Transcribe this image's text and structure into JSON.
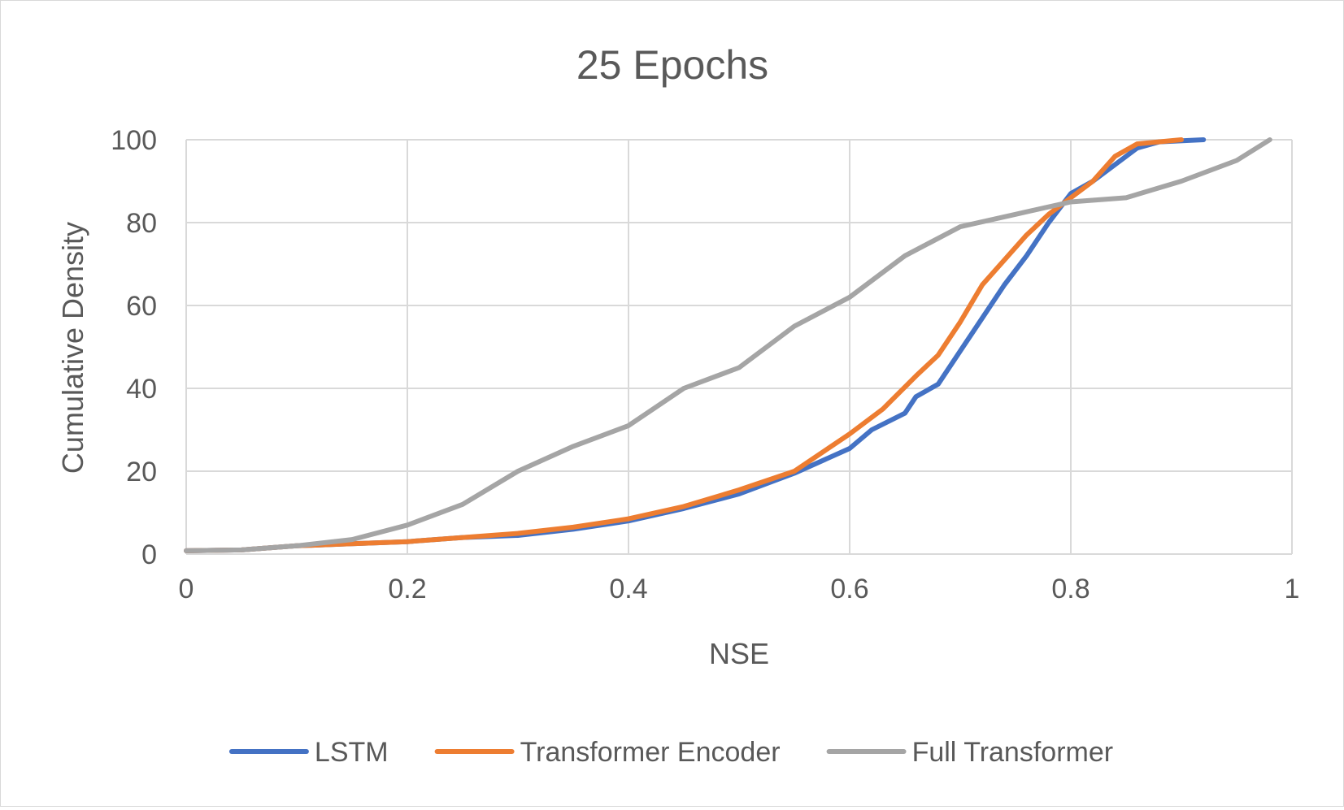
{
  "chart_data": {
    "type": "line",
    "title": "25 Epochs",
    "xlabel": "NSE",
    "ylabel": "Cumulative Density",
    "xlim": [
      0,
      1
    ],
    "ylim": [
      0,
      100
    ],
    "x_ticks": [
      "0",
      "0.2",
      "0.4",
      "0.6",
      "0.8",
      "1"
    ],
    "y_ticks": [
      "0",
      "20",
      "40",
      "60",
      "80",
      "100"
    ],
    "grid": true,
    "legend_position": "bottom",
    "series": [
      {
        "name": "LSTM",
        "color": "#4472C4",
        "points": [
          [
            0,
            0.8
          ],
          [
            0.05,
            1.0
          ],
          [
            0.1,
            2.0
          ],
          [
            0.15,
            2.5
          ],
          [
            0.2,
            3.0
          ],
          [
            0.25,
            4.0
          ],
          [
            0.3,
            4.5
          ],
          [
            0.35,
            6.0
          ],
          [
            0.4,
            8.0
          ],
          [
            0.45,
            11.0
          ],
          [
            0.5,
            14.5
          ],
          [
            0.55,
            19.5
          ],
          [
            0.6,
            25.5
          ],
          [
            0.62,
            30.0
          ],
          [
            0.65,
            34.0
          ],
          [
            0.66,
            38.0
          ],
          [
            0.68,
            41.0
          ],
          [
            0.7,
            49.0
          ],
          [
            0.72,
            57.0
          ],
          [
            0.74,
            65.0
          ],
          [
            0.76,
            72.0
          ],
          [
            0.78,
            80.0
          ],
          [
            0.8,
            87.0
          ],
          [
            0.82,
            90.0
          ],
          [
            0.84,
            94.0
          ],
          [
            0.86,
            98.0
          ],
          [
            0.88,
            99.5
          ],
          [
            0.92,
            100.0
          ]
        ]
      },
      {
        "name": "Transformer Encoder",
        "color": "#ED7D31",
        "points": [
          [
            0,
            0.8
          ],
          [
            0.05,
            1.0
          ],
          [
            0.1,
            2.0
          ],
          [
            0.15,
            2.5
          ],
          [
            0.2,
            3.0
          ],
          [
            0.25,
            4.0
          ],
          [
            0.3,
            5.0
          ],
          [
            0.35,
            6.5
          ],
          [
            0.4,
            8.5
          ],
          [
            0.45,
            11.5
          ],
          [
            0.5,
            15.5
          ],
          [
            0.55,
            20.0
          ],
          [
            0.6,
            29.0
          ],
          [
            0.63,
            35.0
          ],
          [
            0.66,
            43.0
          ],
          [
            0.68,
            48.0
          ],
          [
            0.7,
            56.0
          ],
          [
            0.72,
            65.0
          ],
          [
            0.74,
            71.0
          ],
          [
            0.76,
            77.0
          ],
          [
            0.78,
            82.0
          ],
          [
            0.8,
            86.0
          ],
          [
            0.82,
            90.0
          ],
          [
            0.84,
            96.0
          ],
          [
            0.86,
            99.0
          ],
          [
            0.9,
            100.0
          ]
        ]
      },
      {
        "name": "Full Transformer",
        "color": "#A5A5A5",
        "points": [
          [
            0,
            0.8
          ],
          [
            0.05,
            1.0
          ],
          [
            0.1,
            2.0
          ],
          [
            0.15,
            3.5
          ],
          [
            0.2,
            7.0
          ],
          [
            0.25,
            12.0
          ],
          [
            0.3,
            20.0
          ],
          [
            0.35,
            26.0
          ],
          [
            0.4,
            31.0
          ],
          [
            0.45,
            40.0
          ],
          [
            0.5,
            45.0
          ],
          [
            0.55,
            55.0
          ],
          [
            0.6,
            62.0
          ],
          [
            0.65,
            72.0
          ],
          [
            0.7,
            79.0
          ],
          [
            0.75,
            82.0
          ],
          [
            0.8,
            85.0
          ],
          [
            0.85,
            86.0
          ],
          [
            0.9,
            90.0
          ],
          [
            0.95,
            95.0
          ],
          [
            0.98,
            100.0
          ]
        ]
      }
    ]
  }
}
